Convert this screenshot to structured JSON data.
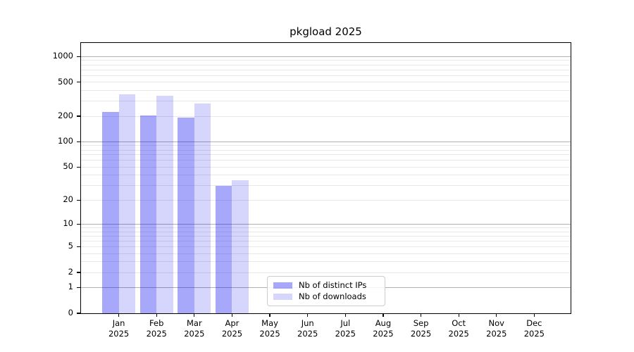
{
  "figure": {
    "title": "pkgload 2025"
  },
  "colors": {
    "background": "#ffffff",
    "spine": "#000000",
    "major_grid": "#b0b0b0",
    "minor_grid": "#e8e8e8",
    "legend_border": "#cccccc",
    "series_dark_flat": "#a8a8fa",
    "series_light_flat": "#d9d9fc"
  },
  "chart_data": {
    "type": "bar",
    "title": "pkgload 2025",
    "xlabel": "",
    "ylabel": "",
    "year": "2025",
    "categories": [
      "Jan",
      "Feb",
      "Mar",
      "Apr",
      "May",
      "Jun",
      "Jul",
      "Aug",
      "Sep",
      "Oct",
      "Nov",
      "Dec"
    ],
    "series": [
      {
        "name": "Nb of distinct IPs",
        "color": "rgba(0,0,240,0.34)",
        "values": [
          225,
          205,
          192,
          30,
          null,
          null,
          null,
          null,
          null,
          null,
          null,
          null
        ]
      },
      {
        "name": "Nb of downloads",
        "color": "rgba(0,0,240,0.16)",
        "values": [
          360,
          348,
          280,
          35,
          null,
          null,
          null,
          null,
          null,
          null,
          null,
          null
        ]
      }
    ],
    "yscale": "log1p",
    "yticks": [
      0,
      1,
      2,
      5,
      10,
      20,
      50,
      100,
      200,
      500,
      1000
    ],
    "ylim": [
      0,
      1440
    ],
    "major_gridlines": [
      1,
      10,
      100,
      1000
    ],
    "grid": true,
    "legend_position": "lower-center-inside"
  }
}
